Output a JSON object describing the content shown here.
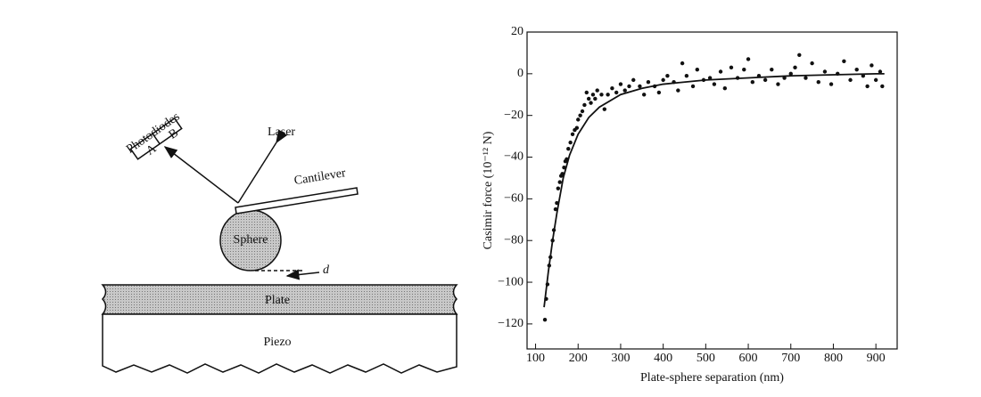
{
  "diagram": {
    "photodiodes": "Photodiodes",
    "diode_a": "A",
    "diode_b": "B",
    "laser": "Laser",
    "cantilever": "Cantilever",
    "sphere": "Sphere",
    "gap": "d",
    "plate": "Plate",
    "piezo": "Piezo"
  },
  "chart_data": {
    "type": "scatter",
    "x_label": "Plate-sphere separation (nm)",
    "y_label": "Casimir force (10⁻¹² N)",
    "xlim": [
      80,
      950
    ],
    "ylim": [
      -132,
      20
    ],
    "xticks": [
      100,
      200,
      300,
      400,
      500,
      600,
      700,
      800,
      900
    ],
    "yticks": [
      20,
      0,
      {
        "value": -20,
        "label": "−20"
      },
      {
        "value": -40,
        "label": "−40"
      },
      {
        "value": -60,
        "label": "−60"
      },
      {
        "value": -80,
        "label": "−80"
      },
      {
        "value": -100,
        "label": "−100"
      },
      {
        "value": -120,
        "label": "−120"
      }
    ],
    "series": [
      {
        "mode": "markers",
        "color": "#111111",
        "x": [
          122,
          125,
          128,
          132,
          135,
          140,
          143,
          147,
          150,
          153,
          157,
          160,
          163,
          167,
          170,
          173,
          177,
          182,
          187,
          192,
          197,
          200,
          205,
          210,
          215,
          220,
          225,
          230,
          235,
          240,
          245,
          255,
          262,
          270,
          280,
          290,
          300,
          310,
          320,
          330,
          345,
          355,
          365,
          380,
          390,
          400,
          410,
          425,
          435,
          445,
          455,
          470,
          480,
          495,
          510,
          520,
          535,
          545,
          560,
          575,
          590,
          600,
          610,
          625,
          640,
          655,
          670,
          685,
          700,
          710,
          720,
          735,
          750,
          765,
          780,
          795,
          810,
          825,
          840,
          855,
          870,
          880,
          890,
          900,
          910,
          915
        ],
        "values": [
          -118,
          -108,
          -101,
          -92,
          -88,
          -80,
          -75,
          -65,
          -62,
          -55,
          -52,
          -49,
          -48,
          -45,
          -42,
          -41,
          -36,
          -33,
          -29,
          -27,
          -26,
          -22,
          -20,
          -18,
          -15,
          -9,
          -12,
          -14,
          -10,
          -12,
          -8,
          -10,
          -17,
          -10,
          -7,
          -9,
          -5,
          -8,
          -6,
          -3,
          -6,
          -10,
          -4,
          -6,
          -9,
          -3,
          -1,
          -4,
          -8,
          5,
          -1,
          -6,
          2,
          -3,
          -2,
          -5,
          1,
          -7,
          3,
          -2,
          2,
          7,
          -4,
          -1,
          -3,
          2,
          -5,
          -2,
          0,
          3,
          9,
          -2,
          5,
          -4,
          1,
          -5,
          0,
          6,
          -3,
          2,
          -1,
          -6,
          4,
          -3,
          1,
          -6
        ]
      },
      {
        "mode": "line",
        "color": "#111111",
        "x": [
          120,
          130,
          140,
          150,
          165,
          180,
          200,
          225,
          250,
          300,
          350,
          400,
          500,
          600,
          700,
          800,
          900,
          920
        ],
        "values": [
          -112,
          -95,
          -80,
          -67,
          -50,
          -39,
          -29,
          -21,
          -16,
          -10,
          -7,
          -5,
          -3,
          -2,
          -1,
          -0.5,
          0,
          0
        ]
      }
    ]
  }
}
